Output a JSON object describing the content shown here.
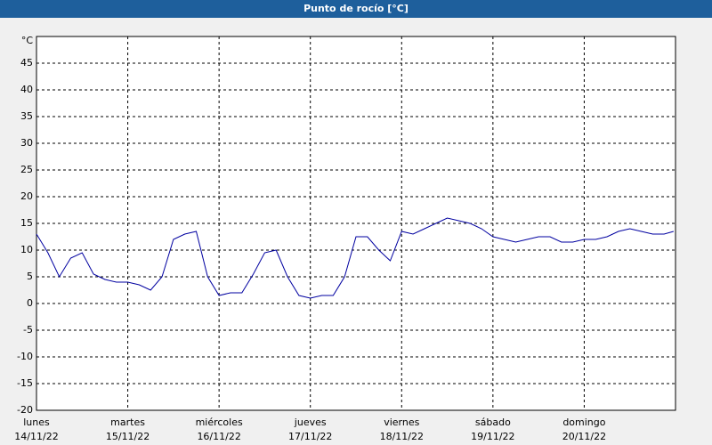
{
  "chart_data": {
    "type": "line",
    "title": "Punto de rocío [°C]",
    "y_unit": "°C",
    "x": [
      0,
      3,
      6,
      9,
      12,
      15,
      18,
      21,
      24,
      27,
      30,
      33,
      36,
      39,
      42,
      45,
      48,
      51,
      54,
      57,
      60,
      63,
      66,
      69,
      72,
      75,
      78,
      81,
      84,
      87,
      90,
      93,
      96,
      99,
      102,
      105,
      108,
      111,
      114,
      117,
      120,
      123,
      126,
      129,
      132,
      135,
      138,
      141,
      144,
      147,
      150,
      153,
      156,
      159,
      162,
      165,
      167.5
    ],
    "series": [
      {
        "name": "Punto de rocío",
        "color": "#0000a0",
        "values": [
          13,
          9.5,
          5,
          8.5,
          9.5,
          5.5,
          4.5,
          4,
          4,
          3.5,
          2.5,
          5,
          12,
          13,
          13.5,
          5,
          1.5,
          2,
          2,
          5.5,
          9.5,
          10,
          5,
          1.5,
          1,
          1.5,
          1.5,
          5,
          12.5,
          12.5,
          10,
          8,
          13.5,
          13,
          14,
          15,
          16,
          15.5,
          15,
          14,
          12.5,
          12,
          11.5,
          12,
          12.5,
          12.5,
          11.5,
          11.5,
          12,
          12,
          12.5,
          13.5,
          14,
          13.5,
          13,
          13,
          13.5
        ]
      }
    ],
    "xlim": [
      0,
      168
    ],
    "xticks": [
      {
        "value": 0,
        "label": "lunes"
      },
      {
        "value": 24,
        "label": "martes"
      },
      {
        "value": 48,
        "label": "miércoles"
      },
      {
        "value": 72,
        "label": "jueves"
      },
      {
        "value": 96,
        "label": "viernes"
      },
      {
        "value": 120,
        "label": "sábado"
      },
      {
        "value": 144,
        "label": "domingo"
      }
    ],
    "xtick_dates": [
      "14/11/22",
      "15/11/22",
      "16/11/22",
      "17/11/22",
      "18/11/22",
      "19/11/22",
      "20/11/22"
    ],
    "ylim": [
      -20,
      50
    ],
    "yticks": [
      -20,
      -15,
      -10,
      -5,
      0,
      5,
      10,
      15,
      20,
      25,
      30,
      35,
      40,
      45
    ],
    "grid": true
  }
}
